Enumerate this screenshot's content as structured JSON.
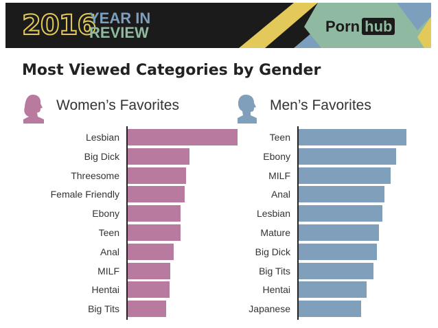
{
  "header": {
    "year": "2016",
    "line1": "YEAR IN",
    "line2": "REVIEW",
    "logo_left": "Porn",
    "logo_right": "hub"
  },
  "colors": {
    "women": "#b97a9f",
    "men": "#7f9fba",
    "dark": "#1b1b1b",
    "yellow": "#e3c95a",
    "green": "#8fb9a0",
    "blue": "#7c9fbd"
  },
  "chart_data": [
    {
      "type": "bar",
      "orientation": "horizontal",
      "title": "Women’s Favorites",
      "icon": "woman-silhouette-icon",
      "categories": [
        "Lesbian",
        "Big Dick",
        "Threesome",
        "Female Friendly",
        "Ebony",
        "Teen",
        "Anal",
        "MILF",
        "Hentai",
        "Big Tits"
      ],
      "values": [
        100,
        56,
        53,
        52,
        48,
        48,
        42,
        39,
        38,
        35
      ]
    },
    {
      "type": "bar",
      "orientation": "horizontal",
      "title": "Men’s Favorites",
      "icon": "man-silhouette-icon",
      "categories": [
        "Teen",
        "Ebony",
        "MILF",
        "Anal",
        "Lesbian",
        "Mature",
        "Big Dick",
        "Big Tits",
        "Hentai",
        "Japanese"
      ],
      "values": [
        98,
        89,
        84,
        78,
        76,
        73,
        71,
        68,
        62,
        57
      ]
    }
  ],
  "title": "Most Viewed Categories by Gender"
}
